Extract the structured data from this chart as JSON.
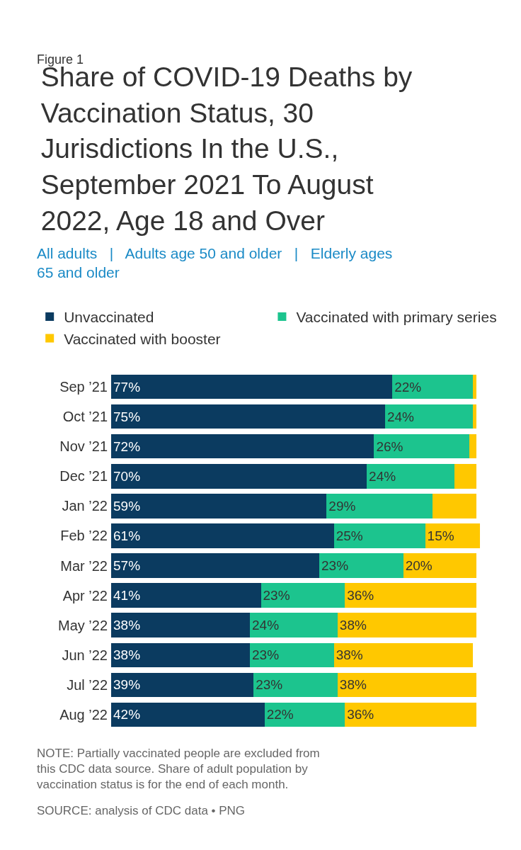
{
  "chart_data": {
    "type": "bar",
    "orientation": "horizontal",
    "stacked": true,
    "title": "Share of COVID-19 Deaths by Vaccination Status, 30 Jurisdictions In the U.S., September 2021 To August 2022, Age 18 and Over",
    "categories": [
      "Sep ’21",
      "Oct ’21",
      "Nov ’21",
      "Dec ’21",
      "Jan ’22",
      "Feb ’22",
      "Mar ’22",
      "Apr ’22",
      "May ’22",
      "Jun ’22",
      "Jul ’22",
      "Aug ’22"
    ],
    "series": [
      {
        "name": "Unvaccinated",
        "color": "#0b3b60",
        "values": [
          77,
          75,
          72,
          70,
          59,
          61,
          57,
          41,
          38,
          38,
          39,
          42
        ],
        "value_labels": [
          "77%",
          "75%",
          "72%",
          "70%",
          "59%",
          "61%",
          "57%",
          "41%",
          "38%",
          "38%",
          "39%",
          "42%"
        ]
      },
      {
        "name": "Vaccinated with primary series",
        "color": "#1cc48e",
        "values": [
          22,
          24,
          26,
          24,
          29,
          25,
          23,
          23,
          24,
          23,
          23,
          22
        ],
        "value_labels": [
          "22%",
          "24%",
          "26%",
          "24%",
          "29%",
          "25%",
          "23%",
          "23%",
          "24%",
          "23%",
          "23%",
          "22%"
        ]
      },
      {
        "name": "Vaccinated with booster",
        "color": "#ffc800",
        "values": [
          1,
          1,
          2,
          6,
          12,
          15,
          20,
          36,
          38,
          38,
          38,
          36
        ],
        "value_labels": [
          null,
          null,
          null,
          null,
          null,
          "15%",
          "20%",
          "36%",
          "38%",
          "38%",
          "38%",
          "36%"
        ]
      }
    ],
    "legend": "top",
    "tick_labels": "y",
    "annotations": [
      "Figure 1",
      "All adults   |   Adults age 50 and older   |   Elderly ages 65 and older",
      "NOTE: Partially vaccinated people are excluded from this CDC data source. Share of adult population by vaccination status is for the end of each month.",
      "SOURCE: analysis of CDC data • PNG"
    ]
  }
}
